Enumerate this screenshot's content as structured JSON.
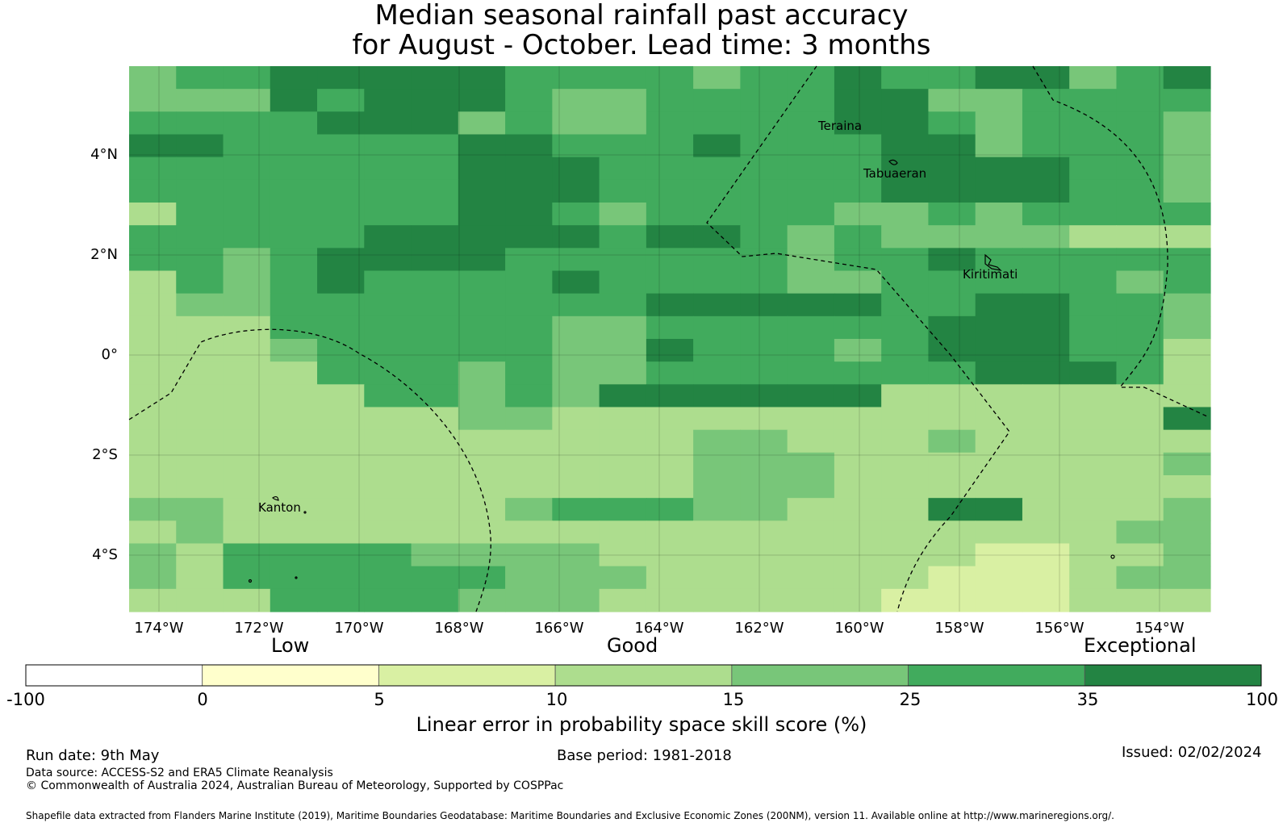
{
  "title_line1": "Median seasonal rainfall past accuracy",
  "title_line2": "for August - October. Lead time: 3 months",
  "map": {
    "lat_labels": [
      "4°N",
      "2°N",
      "0°",
      "2°S",
      "4°S"
    ],
    "lon_labels": [
      "174°W",
      "172°W",
      "170°W",
      "168°W",
      "166°W",
      "164°W",
      "162°W",
      "160°W",
      "158°W",
      "156°W",
      "154°W"
    ],
    "places": [
      "Teraina",
      "Tabuaeran",
      "Kiritimati",
      "Kanton"
    ],
    "colors": {
      "c0": "#ffffcc",
      "c5": "#d9f0a3",
      "c10": "#addd8e",
      "c15": "#78c679",
      "c25": "#41ab5d",
      "c35": "#238443"
    },
    "grid_rows": [
      "34455555444434454455345",
      "33354555433444455334444",
      "44445553433444455434443",
      "55444445544454445534443",
      "44444445554444445555443",
      "44444445554444445555443",
      "24444445543444433434444",
      "44444555554554343333222",
      "44345555444444344544444",
      "24345444454444334444434",
      "23344444444555554455443",
      "22244444433444444555443",
      "22234444433544434555442",
      "22224443433444444455542",
      "22222443435555552222222",
      "22222223322222222222225",
      "22222222222233222322222",
      "22222222222233322222223",
      "22222222222233322222222",
      "33222222344433222552223",
      "23222222222222222222233",
      "32444433332222222211223",
      "32444444333222222111233",
      "22244443332222221111222"
    ]
  },
  "legend": {
    "categories": [
      "Low",
      "Good",
      "Exceptional"
    ],
    "ticks": [
      "-100",
      "0",
      "5",
      "10",
      "15",
      "25",
      "35",
      "100"
    ],
    "title": "Linear error in probability space skill score (%)"
  },
  "footer": {
    "run_date": "Run date: 9th May",
    "base_period": "Base period: 1981-2018",
    "issued": "Issued: 02/02/2024",
    "data_source": "Data source: ACCESS-S2 and ERA5 Climate Reanalysis",
    "copyright": "© Commonwealth of Australia 2024, Australian Bureau of Meteorology, Supported by COSPPac",
    "shapefile": "Shapefile data extracted from Flanders Marine Institute (2019), Maritime Boundaries Geodatabase: Maritime Boundaries and Exclusive Economic Zones (200NM), version 11. Available online at http://www.marineregions.org/."
  }
}
